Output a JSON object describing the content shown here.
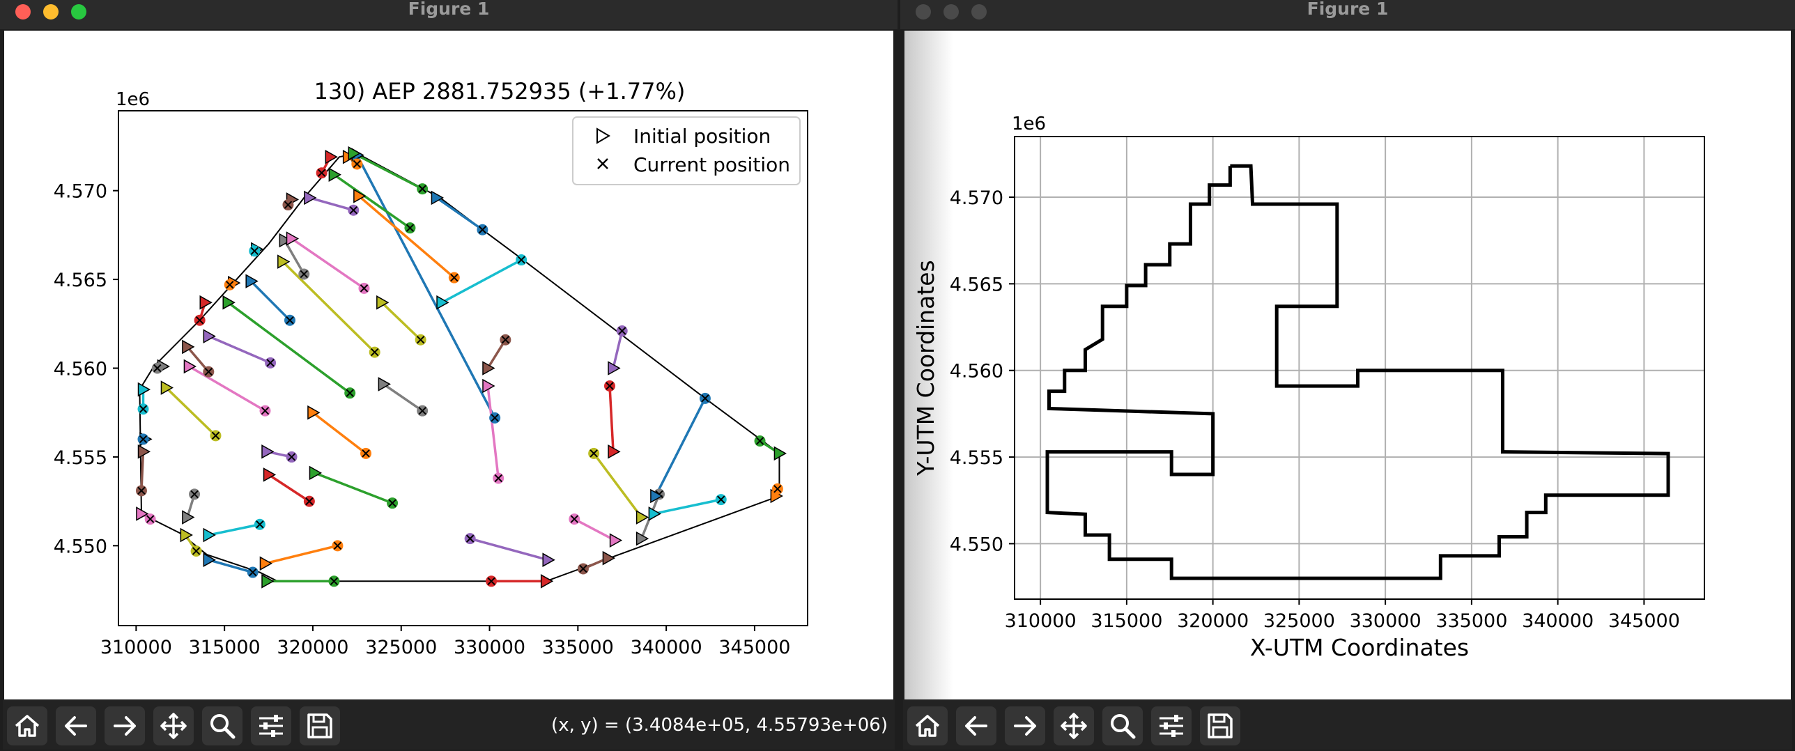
{
  "windows": [
    {
      "title": "Figure 1",
      "chart": {
        "title": "130) AEP 2881.752935  (+1.77%)",
        "offset_label": "1e6",
        "x_ticks": [
          "310000",
          "315000",
          "320000",
          "325000",
          "330000",
          "335000",
          "340000",
          "345000"
        ],
        "y_ticks": [
          "4.550",
          "4.555",
          "4.560",
          "4.565",
          "4.570"
        ],
        "legend": [
          "Initial position",
          "Current position"
        ]
      },
      "status": "(x, y) = (3.4084e+05, 4.55793e+06)"
    },
    {
      "title": "Figure 1",
      "chart": {
        "offset_label": "1e6",
        "xlabel": "X-UTM Coordinates",
        "ylabel": "Y-UTM Coordinates",
        "x_ticks": [
          "310000",
          "315000",
          "320000",
          "325000",
          "330000",
          "335000",
          "340000",
          "345000"
        ],
        "y_ticks": [
          "4.550",
          "4.555",
          "4.560",
          "4.565",
          "4.570"
        ]
      }
    }
  ],
  "toolbar_icons": [
    "home-icon",
    "back-arrow-icon",
    "forward-arrow-icon",
    "pan-icon",
    "zoom-icon",
    "configure-subplots-icon",
    "save-icon"
  ],
  "chart_data": [
    {
      "type": "scatter",
      "title": "130) AEP 2881.752935  (+1.77%)",
      "offset_label": "1e6",
      "xlim": [
        309000,
        348000
      ],
      "ylim": [
        4.5455,
        4.5745
      ],
      "legend_position": "upper right",
      "boundary": [
        [
          318000,
          4.548
        ],
        [
          317000,
          4.5485
        ],
        [
          314000,
          4.5495
        ],
        [
          312500,
          4.5507
        ],
        [
          310300,
          4.5518
        ],
        [
          310200,
          4.5588
        ],
        [
          311000,
          4.5601
        ],
        [
          313500,
          4.5626
        ],
        [
          315500,
          4.5648
        ],
        [
          317500,
          4.567
        ],
        [
          319500,
          4.5696
        ],
        [
          321500,
          4.5719
        ],
        [
          322500,
          4.5721
        ],
        [
          327200,
          4.5696
        ],
        [
          329600,
          4.5678
        ],
        [
          331900,
          4.5661
        ],
        [
          342200,
          4.5583
        ],
        [
          346400,
          4.5552
        ],
        [
          346400,
          4.5528
        ],
        [
          333200,
          4.548
        ]
      ],
      "turbines": [
        {
          "initial": [
            322500,
            4.572
          ],
          "current": [
            330300,
            4.5572
          ],
          "color": "#1f77b4"
        },
        {
          "initial": [
            322000,
            4.5719
          ],
          "current": [
            322500,
            4.5715
          ],
          "color": "#ff7f0e"
        },
        {
          "initial": [
            322300,
            4.5721
          ],
          "current": [
            326200,
            4.5701
          ],
          "color": "#2ca02c"
        },
        {
          "initial": [
            321000,
            4.5719
          ],
          "current": [
            320500,
            4.571
          ],
          "color": "#d62728"
        },
        {
          "initial": [
            318800,
            4.5695
          ],
          "current": [
            318600,
            4.5692
          ],
          "color": "#8c564b"
        },
        {
          "initial": [
            319800,
            4.5696
          ],
          "current": [
            322300,
            4.5689
          ],
          "color": "#9467bd"
        },
        {
          "initial": [
            321200,
            4.5709
          ],
          "current": [
            325500,
            4.5679
          ],
          "color": "#2ca02c"
        },
        {
          "initial": [
            322600,
            4.5697
          ],
          "current": [
            328000,
            4.5651
          ],
          "color": "#ff7f0e"
        },
        {
          "initial": [
            327000,
            4.5696
          ],
          "current": [
            329600,
            4.5678
          ],
          "color": "#1f77b4"
        },
        {
          "initial": [
            318400,
            4.5672
          ],
          "current": [
            319500,
            4.5653
          ],
          "color": "#7f7f7f"
        },
        {
          "initial": [
            318800,
            4.5673
          ],
          "current": [
            322900,
            4.5645
          ],
          "color": "#e377c2"
        },
        {
          "initial": [
            318300,
            4.566
          ],
          "current": [
            323500,
            4.5609
          ],
          "color": "#bcbd22"
        },
        {
          "initial": [
            316800,
            4.5667
          ],
          "current": [
            316700,
            4.5666
          ],
          "color": "#17becf"
        },
        {
          "initial": [
            316500,
            4.5649
          ],
          "current": [
            318700,
            4.5627
          ],
          "color": "#1f77b4"
        },
        {
          "initial": [
            315500,
            4.5648
          ],
          "current": [
            315300,
            4.5647
          ],
          "color": "#ff7f0e"
        },
        {
          "initial": [
            315200,
            4.5637
          ],
          "current": [
            322100,
            4.5586
          ],
          "color": "#2ca02c"
        },
        {
          "initial": [
            313900,
            4.5637
          ],
          "current": [
            313600,
            4.5627
          ],
          "color": "#d62728"
        },
        {
          "initial": [
            314100,
            4.5618
          ],
          "current": [
            317600,
            4.5603
          ],
          "color": "#9467bd"
        },
        {
          "initial": [
            312900,
            4.5612
          ],
          "current": [
            314100,
            4.5598
          ],
          "color": "#8c564b"
        },
        {
          "initial": [
            313000,
            4.5601
          ],
          "current": [
            317300,
            4.5576
          ],
          "color": "#e377c2"
        },
        {
          "initial": [
            311500,
            4.5601
          ],
          "current": [
            311200,
            4.56
          ],
          "color": "#7f7f7f"
        },
        {
          "initial": [
            311700,
            4.5589
          ],
          "current": [
            314500,
            4.5562
          ],
          "color": "#bcbd22"
        },
        {
          "initial": [
            310400,
            4.5588
          ],
          "current": [
            310400,
            4.5577
          ],
          "color": "#17becf"
        },
        {
          "initial": [
            310500,
            4.556
          ],
          "current": [
            310400,
            4.556
          ],
          "color": "#1f77b4"
        },
        {
          "initial": [
            323900,
            4.5637
          ],
          "current": [
            326100,
            4.5616
          ],
          "color": "#bcbd22"
        },
        {
          "initial": [
            327300,
            4.5637
          ],
          "current": [
            331800,
            4.5661
          ],
          "color": "#17becf"
        },
        {
          "initial": [
            329900,
            4.56
          ],
          "current": [
            330900,
            4.5616
          ],
          "color": "#8c564b"
        },
        {
          "initial": [
            324000,
            4.5591
          ],
          "current": [
            326200,
            4.5576
          ],
          "color": "#7f7f7f"
        },
        {
          "initial": [
            329900,
            4.559
          ],
          "current": [
            330500,
            4.5538
          ],
          "color": "#e377c2"
        },
        {
          "initial": [
            320000,
            4.5575
          ],
          "current": [
            323000,
            4.5552
          ],
          "color": "#ff7f0e"
        },
        {
          "initial": [
            317400,
            4.5553
          ],
          "current": [
            318800,
            4.555
          ],
          "color": "#9467bd"
        },
        {
          "initial": [
            317500,
            4.554
          ],
          "current": [
            319800,
            4.5525
          ],
          "color": "#d62728"
        },
        {
          "initial": [
            320100,
            4.5541
          ],
          "current": [
            324500,
            4.5524
          ],
          "color": "#2ca02c"
        },
        {
          "initial": [
            310400,
            4.5553
          ],
          "current": [
            310300,
            4.5531
          ],
          "color": "#8c564b"
        },
        {
          "initial": [
            310300,
            4.5518
          ],
          "current": [
            310800,
            4.5515
          ],
          "color": "#e377c2"
        },
        {
          "initial": [
            312900,
            4.5516
          ],
          "current": [
            313300,
            4.5529
          ],
          "color": "#7f7f7f"
        },
        {
          "initial": [
            314100,
            4.5506
          ],
          "current": [
            317000,
            4.5512
          ],
          "color": "#17becf"
        },
        {
          "initial": [
            312800,
            4.5506
          ],
          "current": [
            313400,
            4.5497
          ],
          "color": "#bcbd22"
        },
        {
          "initial": [
            314100,
            4.5492
          ],
          "current": [
            316600,
            4.5485
          ],
          "color": "#1f77b4"
        },
        {
          "initial": [
            317300,
            4.549
          ],
          "current": [
            321400,
            4.55
          ],
          "color": "#ff7f0e"
        },
        {
          "initial": [
            317400,
            4.548
          ],
          "current": [
            321200,
            4.548
          ],
          "color": "#2ca02c"
        },
        {
          "initial": [
            333200,
            4.548
          ],
          "current": [
            330100,
            4.548
          ],
          "color": "#d62728"
        },
        {
          "initial": [
            333300,
            4.5492
          ],
          "current": [
            328900,
            4.5504
          ],
          "color": "#9467bd"
        },
        {
          "initial": [
            336700,
            4.5493
          ],
          "current": [
            335300,
            4.5487
          ],
          "color": "#8c564b"
        },
        {
          "initial": [
            337100,
            4.5503
          ],
          "current": [
            334800,
            4.5515
          ],
          "color": "#e377c2"
        },
        {
          "initial": [
            338600,
            4.5504
          ],
          "current": [
            339600,
            4.5529
          ],
          "color": "#7f7f7f"
        },
        {
          "initial": [
            338600,
            4.5516
          ],
          "current": [
            335900,
            4.5552
          ],
          "color": "#bcbd22"
        },
        {
          "initial": [
            339300,
            4.5518
          ],
          "current": [
            343100,
            4.5526
          ],
          "color": "#17becf"
        },
        {
          "initial": [
            339400,
            4.5528
          ],
          "current": [
            342200,
            4.5583
          ],
          "color": "#1f77b4"
        },
        {
          "initial": [
            337000,
            4.5553
          ],
          "current": [
            336800,
            4.559
          ],
          "color": "#d62728"
        },
        {
          "initial": [
            337000,
            4.56
          ],
          "current": [
            337500,
            4.5621
          ],
          "color": "#9467bd"
        },
        {
          "initial": [
            346200,
            4.5528
          ],
          "current": [
            346300,
            4.5532
          ],
          "color": "#ff7f0e"
        },
        {
          "initial": [
            346400,
            4.5552
          ],
          "current": [
            345300,
            4.5559
          ],
          "color": "#2ca02c"
        }
      ]
    },
    {
      "type": "line",
      "xlabel": "X-UTM Coordinates",
      "ylabel": "Y-UTM Coordinates",
      "offset_label": "1e6",
      "grid": true,
      "xlim": [
        308500,
        348500
      ],
      "ylim": [
        4.5468,
        4.5735
      ],
      "polygon": [
        [
          321000,
          4.5718
        ],
        [
          322200,
          4.5718
        ],
        [
          322300,
          4.5696
        ],
        [
          327200,
          4.5696
        ],
        [
          327200,
          4.5637
        ],
        [
          323700,
          4.5637
        ],
        [
          323700,
          4.5591
        ],
        [
          328400,
          4.5591
        ],
        [
          328400,
          4.56
        ],
        [
          336800,
          4.56
        ],
        [
          336800,
          4.5553
        ],
        [
          346400,
          4.5552
        ],
        [
          346400,
          4.5528
        ],
        [
          339300,
          4.5528
        ],
        [
          339300,
          4.5518
        ],
        [
          338200,
          4.5518
        ],
        [
          338200,
          4.5504
        ],
        [
          336600,
          4.5504
        ],
        [
          336600,
          4.5493
        ],
        [
          333200,
          4.5493
        ],
        [
          333200,
          4.548
        ],
        [
          317600,
          4.548
        ],
        [
          317600,
          4.5491
        ],
        [
          314000,
          4.5491
        ],
        [
          314000,
          4.5505
        ],
        [
          312600,
          4.5505
        ],
        [
          312600,
          4.5517
        ],
        [
          310400,
          4.5518
        ],
        [
          310400,
          4.5553
        ],
        [
          317600,
          4.5553
        ],
        [
          317600,
          4.554
        ],
        [
          320000,
          4.554
        ],
        [
          320000,
          4.5575
        ],
        [
          310500,
          4.5578
        ],
        [
          310500,
          4.5588
        ],
        [
          311400,
          4.5588
        ],
        [
          311400,
          4.56
        ],
        [
          312600,
          4.56
        ],
        [
          312600,
          4.5612
        ],
        [
          313600,
          4.5618
        ],
        [
          313600,
          4.5637
        ],
        [
          315000,
          4.5637
        ],
        [
          315000,
          4.5649
        ],
        [
          316100,
          4.5649
        ],
        [
          316100,
          4.5661
        ],
        [
          317500,
          4.5661
        ],
        [
          317500,
          4.5673
        ],
        [
          318700,
          4.5673
        ],
        [
          318700,
          4.5696
        ],
        [
          319800,
          4.5696
        ],
        [
          319800,
          4.5707
        ],
        [
          321000,
          4.5707
        ],
        [
          321000,
          4.5718
        ]
      ]
    }
  ]
}
